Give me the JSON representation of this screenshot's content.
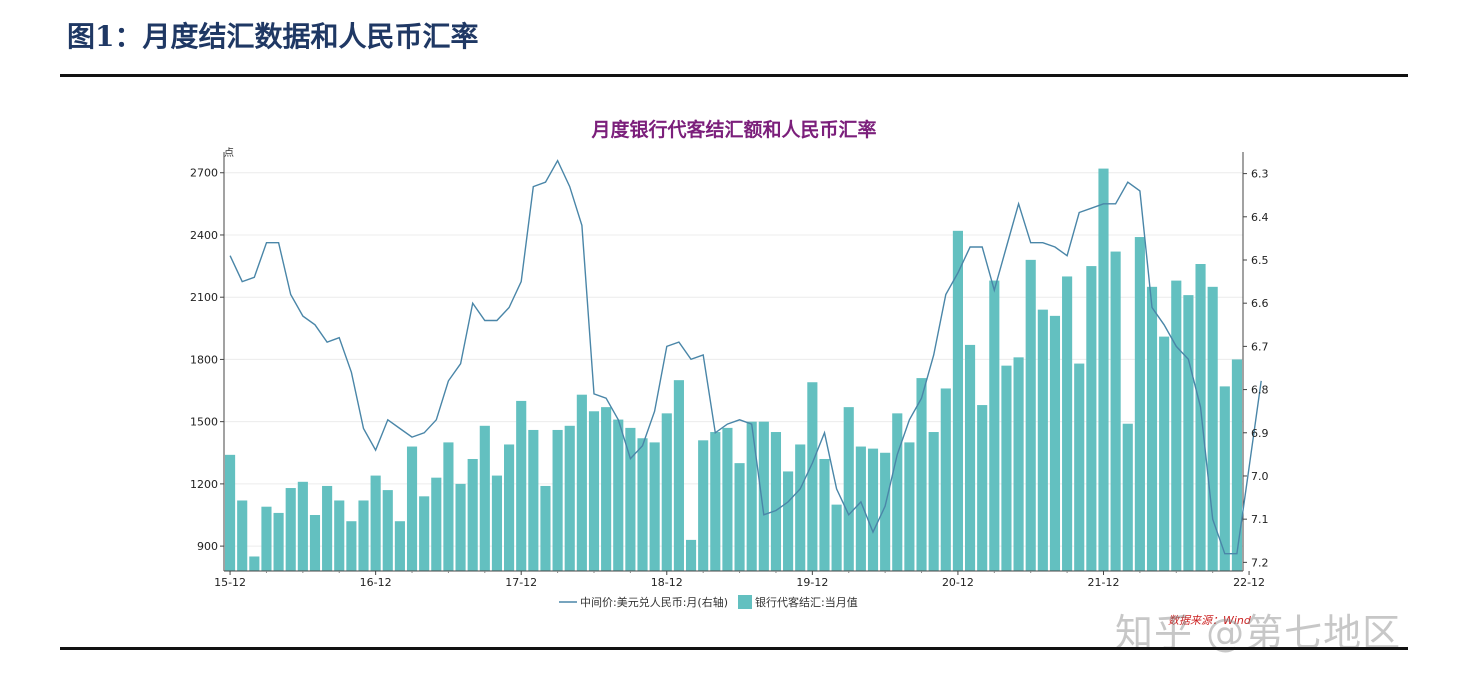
{
  "figure_title": "图1：月度结汇数据和人民币汇率",
  "watermark": "知乎 @第七地区",
  "colors": {
    "bar": "#63c0c0",
    "line": "#4a86a8",
    "title": "#7b1f7b",
    "source": "#cc2222"
  },
  "chart_data": {
    "type": "bar+line",
    "title": "月度银行代客结汇额和人民币汇率",
    "unit_label": "点",
    "source_note": "数据来源：Wind",
    "left_axis": {
      "ylim": [
        780,
        2800
      ],
      "ticks": [
        900,
        1200,
        1500,
        1800,
        2100,
        2400,
        2700
      ]
    },
    "right_axis": {
      "ylim": [
        7.22,
        6.25
      ],
      "ticks": [
        "6.3",
        "6.4",
        "6.5",
        "6.6",
        "6.7",
        "6.8",
        "6.9",
        "7.0",
        "7.1",
        "7.2"
      ],
      "inverted": true
    },
    "x_tick_labels": [
      "15-12",
      "16-12",
      "17-12",
      "18-12",
      "19-12",
      "20-12",
      "21-12",
      "22-12"
    ],
    "legend": [
      {
        "name": "中间价:美元兑人民币:月(右轴)",
        "type": "line"
      },
      {
        "name": "银行代客结汇:当月值",
        "type": "bar"
      }
    ],
    "series": [
      {
        "name": "银行代客结汇:当月值",
        "type": "bar",
        "axis": "left",
        "values": [
          1340,
          1120,
          850,
          1090,
          1060,
          1180,
          1210,
          1050,
          1190,
          1120,
          1020,
          1120,
          1240,
          1170,
          1020,
          1380,
          1140,
          1230,
          1400,
          1200,
          1320,
          1480,
          1240,
          1390,
          1600,
          1460,
          1190,
          1460,
          1480,
          1630,
          1550,
          1570,
          1510,
          1470,
          1420,
          1400,
          1540,
          1700,
          930,
          1410,
          1450,
          1470,
          1300,
          1500,
          1500,
          1450,
          1260,
          1390,
          1690,
          1320,
          1100,
          1570,
          1380,
          1370,
          1350,
          1540,
          1400,
          1710,
          1450,
          1660,
          2420,
          1870,
          1580,
          2180,
          1770,
          1810,
          2280,
          2040,
          2010,
          2200,
          1780,
          2250,
          2720,
          2320,
          1490,
          2390,
          2150,
          1910,
          2180,
          2110,
          2260,
          2150,
          1670,
          1800
        ]
      },
      {
        "name": "中间价:美元兑人民币:月(右轴)",
        "type": "line",
        "axis": "right",
        "values": [
          6.49,
          6.55,
          6.54,
          6.46,
          6.46,
          6.58,
          6.63,
          6.65,
          6.69,
          6.68,
          6.76,
          6.89,
          6.94,
          6.87,
          6.89,
          6.91,
          6.9,
          6.87,
          6.78,
          6.74,
          6.6,
          6.64,
          6.64,
          6.61,
          6.55,
          6.33,
          6.32,
          6.27,
          6.33,
          6.42,
          6.81,
          6.82,
          6.87,
          6.96,
          6.93,
          6.85,
          6.7,
          6.69,
          6.73,
          6.72,
          6.9,
          6.88,
          6.87,
          6.88,
          7.09,
          7.08,
          7.06,
          7.03,
          6.97,
          6.9,
          7.03,
          7.09,
          7.06,
          7.13,
          7.07,
          6.95,
          6.87,
          6.82,
          6.72,
          6.58,
          6.53,
          6.47,
          6.47,
          6.57,
          6.47,
          6.37,
          6.46,
          6.46,
          6.47,
          6.49,
          6.39,
          6.38,
          6.37,
          6.37,
          6.32,
          6.34,
          6.61,
          6.65,
          6.7,
          6.73,
          6.84,
          7.1,
          7.18,
          7.18,
          6.98,
          6.78
        ]
      }
    ]
  }
}
